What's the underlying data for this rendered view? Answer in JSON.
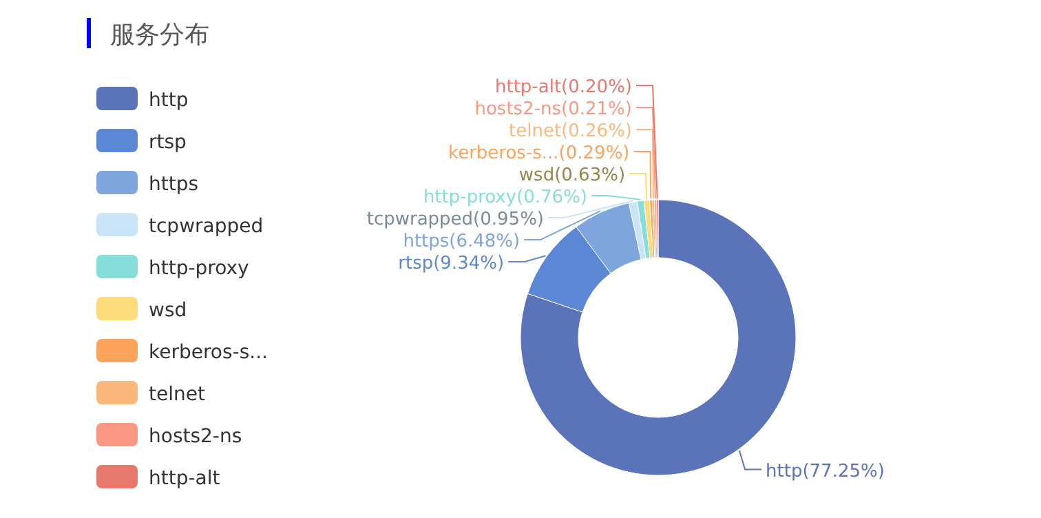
{
  "chart_data": {
    "type": "donut",
    "title": "服务分布",
    "legend": "left",
    "categories": [
      "http",
      "rtsp",
      "https",
      "tcpwrapped",
      "http-proxy",
      "wsd",
      "kerberos-s...",
      "telnet",
      "hosts2-ns",
      "http-alt"
    ],
    "values": [
      77.25,
      9.34,
      6.48,
      0.95,
      0.76,
      0.63,
      0.29,
      0.26,
      0.21,
      0.2
    ],
    "colors": [
      "#5b73b9",
      "#5b87d4",
      "#7ea6dc",
      "#c9e4f8",
      "#86ddd9",
      "#fddc7a",
      "#fba35a",
      "#fbb87a",
      "#fa9782",
      "#e8776c"
    ],
    "value_labels": [
      "http(77.25%)",
      "rtsp(9.34%)",
      "https(6.48%)",
      "tcpwrapped(0.95%)",
      "http-proxy(0.76%)",
      "wsd(0.63%)",
      "kerberos-s...(0.29%)",
      "telnet(0.26%)",
      "hosts2-ns(0.21%)",
      "http-alt(0.20%)"
    ]
  }
}
